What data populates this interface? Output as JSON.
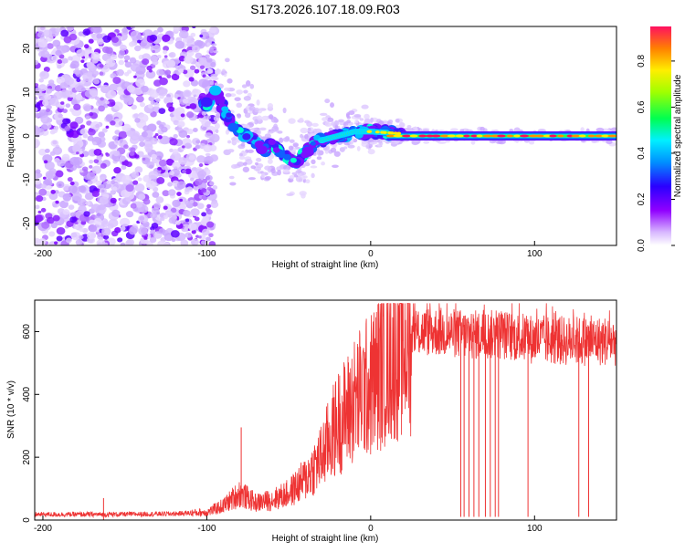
{
  "chart_data": [
    {
      "type": "heatmap",
      "title": "S173.2026.107.18.09.R03",
      "xlabel": "Height of straight line (km)",
      "ylabel": "Frequency (Hz)",
      "xlim": [
        -205,
        150
      ],
      "ylim": [
        -25,
        25
      ],
      "xticks": [
        -200,
        -100,
        0,
        100
      ],
      "xtick_labels": [
        "-200",
        "-100",
        "0",
        "100"
      ],
      "yticks": [
        -20,
        -10,
        0,
        10,
        20
      ],
      "ytick_labels": [
        "-20",
        "-10",
        "0",
        "10",
        "20"
      ],
      "colorbar": {
        "label": "Normalized spectral amplitude",
        "range": [
          0,
          0.95
        ],
        "ticks": [
          0.0,
          0.2,
          0.4,
          0.6,
          0.8
        ],
        "tick_labels": [
          "0.0",
          "0.2",
          "0.4",
          "0.6",
          "0.8"
        ],
        "colors": [
          "#e8d8ff",
          "#a000ff",
          "#3a00ff",
          "#0060ff",
          "#00d8ff",
          "#00ff60",
          "#a0ff00",
          "#ffff00",
          "#ff9000",
          "#ff0040"
        ]
      },
      "ridge": [
        {
          "x": -100,
          "y": 7
        },
        {
          "x": -95,
          "y": 11
        },
        {
          "x": -90,
          "y": 6
        },
        {
          "x": -85,
          "y": 3
        },
        {
          "x": -80,
          "y": 1
        },
        {
          "x": -75,
          "y": 0
        },
        {
          "x": -70,
          "y": -1
        },
        {
          "x": -65,
          "y": -3
        },
        {
          "x": -60,
          "y": -2
        },
        {
          "x": -55,
          "y": -4
        },
        {
          "x": -50,
          "y": -5
        },
        {
          "x": -45,
          "y": -6
        },
        {
          "x": -40,
          "y": -4
        },
        {
          "x": -35,
          "y": -2
        },
        {
          "x": -30,
          "y": -1
        },
        {
          "x": -20,
          "y": 0
        },
        {
          "x": -10,
          "y": 1
        },
        {
          "x": 0,
          "y": 1
        },
        {
          "x": 20,
          "y": 0.5
        },
        {
          "x": 50,
          "y": 0
        },
        {
          "x": 100,
          "y": 0
        },
        {
          "x": 150,
          "y": 0
        }
      ]
    },
    {
      "type": "line",
      "xlabel": "Height of straight line (km)",
      "ylabel": "SNR (10 * v/v)",
      "xlim": [
        -205,
        150
      ],
      "ylim": [
        0,
        700
      ],
      "xticks": [
        -200,
        -100,
        0,
        100
      ],
      "xtick_labels": [
        "-200",
        "-100",
        "0",
        "100"
      ],
      "yticks": [
        0,
        200,
        400,
        600
      ],
      "ytick_labels": [
        "0",
        "200",
        "400",
        "600"
      ],
      "series": [
        {
          "name": "SNR",
          "color": "#ee3333",
          "envelope_x": [
            -205,
            -160,
            -120,
            -100,
            -90,
            -80,
            -70,
            -60,
            -50,
            -40,
            -30,
            -25,
            -20,
            -15,
            -10,
            -5,
            0,
            5,
            10,
            15,
            20,
            25,
            30,
            40,
            60,
            80,
            100,
            120,
            150
          ],
          "envelope_y": [
            18,
            18,
            20,
            25,
            45,
            85,
            55,
            65,
            85,
            130,
            200,
            260,
            310,
            340,
            380,
            410,
            430,
            470,
            520,
            540,
            560,
            580,
            600,
            600,
            590,
            590,
            575,
            570,
            570
          ],
          "spike_x": [
            -163,
            -79,
            55,
            57,
            60,
            63,
            66,
            70,
            73,
            76,
            78,
            96,
            127,
            133
          ],
          "spike_y": [
            70,
            295,
            10,
            10,
            10,
            10,
            10,
            10,
            10,
            10,
            10,
            10,
            10,
            10
          ]
        }
      ]
    }
  ]
}
